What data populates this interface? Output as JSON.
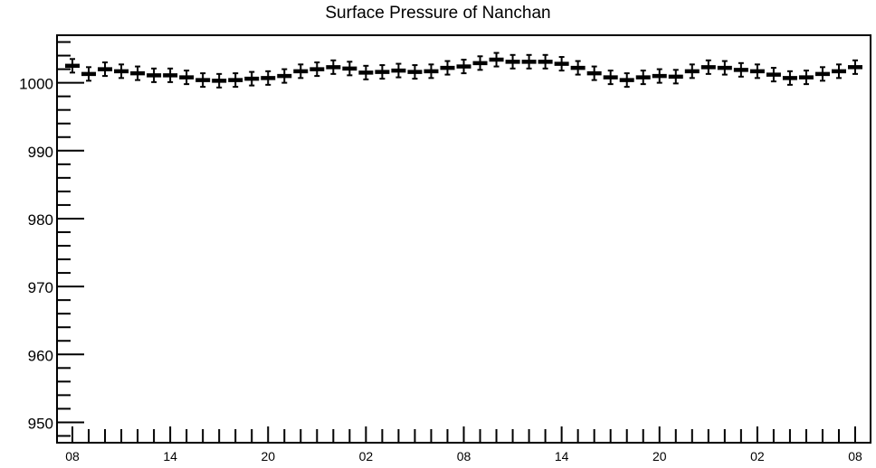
{
  "chart_data": {
    "type": "scatter",
    "title": "Surface Pressure of Nanchan",
    "xlabel": "",
    "ylabel": "",
    "ylim": [
      947,
      1007
    ],
    "y_ticks": [
      950,
      960,
      970,
      980,
      990,
      1000
    ],
    "x_tick_labels": [
      "08",
      "14",
      "20",
      "02",
      "08",
      "14",
      "20",
      "02",
      "08"
    ],
    "x_hours_step": 1,
    "error_bar": 1,
    "grid": false,
    "color": "#000000",
    "series": [
      {
        "values": [
          1002.5,
          1001.3,
          1002.0,
          1001.7,
          1001.4,
          1001.1,
          1001.1,
          1000.8,
          1000.4,
          1000.3,
          1000.4,
          1000.6,
          1000.7,
          1001.0,
          1001.7,
          1002.0,
          1002.3,
          1002.1,
          1001.5,
          1001.6,
          1001.8,
          1001.6,
          1001.7,
          1002.2,
          1002.4,
          1002.9,
          1003.4,
          1003.1,
          1003.1,
          1003.1,
          1002.8,
          1002.2,
          1001.4,
          1000.8,
          1000.4,
          1000.8,
          1001.0,
          1000.9,
          1001.7,
          1002.3,
          1002.2,
          1001.9,
          1001.7,
          1001.2,
          1000.7,
          1000.8,
          1001.3,
          1001.7,
          1002.3
        ]
      }
    ]
  }
}
